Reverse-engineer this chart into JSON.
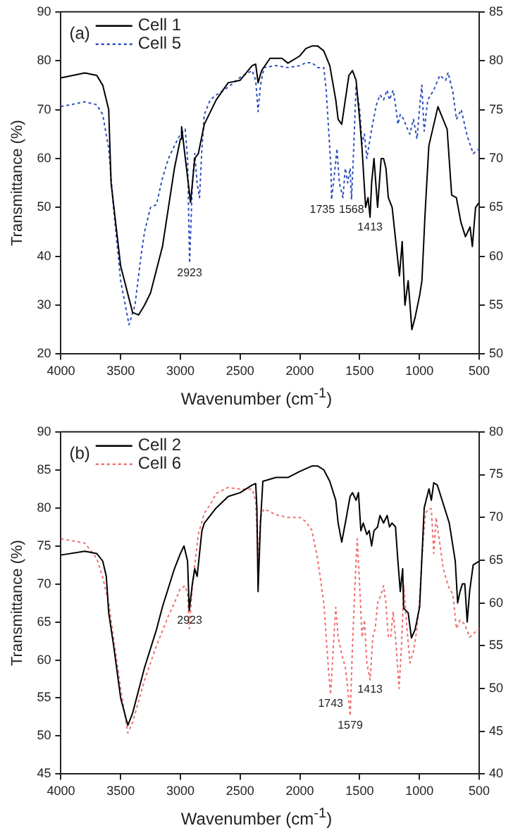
{
  "chart_data": [
    {
      "type": "line",
      "title": "(a)",
      "xlabel": "Wavenumber (cm$^{-1}$)",
      "ylabel": "Transmittance (%)",
      "xlim": [
        4000,
        500
      ],
      "xticks": [
        4000,
        3500,
        3000,
        2500,
        2000,
        1500,
        1000,
        500
      ],
      "ylim": [
        20,
        90
      ],
      "yticks": [
        20,
        30,
        40,
        50,
        60,
        70,
        80,
        90
      ],
      "y2lim": [
        50,
        85
      ],
      "y2ticks": [
        50,
        55,
        60,
        65,
        70,
        75,
        80,
        85
      ],
      "grid": false,
      "legend": "top left",
      "marker": "none",
      "annotations": [
        {
          "text": "2923",
          "x": 2923,
          "y": 38.5
        },
        {
          "text": "1735",
          "x": 1735,
          "y": 51.5
        },
        {
          "text": "1568",
          "x": 1568,
          "y": 51.5
        },
        {
          "text": "1413",
          "x": 1413,
          "y": 48
        }
      ],
      "series": [
        {
          "name": "Cell 1",
          "color": "#000000",
          "line_style": "solid",
          "x": [
            4000,
            3800,
            3700,
            3650,
            3600,
            3580,
            3500,
            3400,
            3350,
            3300,
            3250,
            3150,
            3100,
            3050,
            3000,
            2990,
            2915,
            2880,
            2850,
            2800,
            2700,
            2600,
            2500,
            2400,
            2370,
            2350,
            2320,
            2250,
            2150,
            2100,
            2000,
            1950,
            1900,
            1850,
            1800,
            1750,
            1700,
            1680,
            1650,
            1620,
            1590,
            1560,
            1530,
            1500,
            1480,
            1450,
            1430,
            1413,
            1400,
            1380,
            1350,
            1320,
            1300,
            1280,
            1260,
            1228,
            1167,
            1144,
            1121,
            1094,
            1063,
            1036,
            998,
            979,
            952,
            921,
            845,
            768,
            730,
            691,
            653,
            615,
            576,
            557,
            530,
            500
          ],
          "values": [
            76.5,
            77.5,
            77,
            75,
            70,
            55,
            38,
            28.5,
            28,
            30,
            32.5,
            42,
            50,
            58,
            64,
            66.5,
            51,
            60,
            61,
            67,
            72,
            75.5,
            76,
            79,
            79.3,
            75.5,
            78,
            80.5,
            80.5,
            79.5,
            81,
            82.5,
            83,
            83,
            82,
            79,
            72,
            68,
            67,
            72,
            77,
            78,
            76,
            68,
            62,
            50,
            52,
            48,
            55,
            60,
            50,
            60,
            60,
            58,
            52,
            50,
            36,
            43,
            30,
            35,
            25,
            27.5,
            32,
            35,
            49,
            62.6,
            70.6,
            66,
            52.5,
            52,
            47,
            44,
            46,
            42,
            50,
            51
          ]
        },
        {
          "name": "Cell 5",
          "color": "#3050c0",
          "line_style": "dotted",
          "axis": "y2",
          "x": [
            4000,
            3800,
            3700,
            3650,
            3600,
            3560,
            3500,
            3430,
            3380,
            3330,
            3300,
            3250,
            3200,
            3150,
            3100,
            3050,
            3000,
            2960,
            2940,
            2923,
            2900,
            2880,
            2860,
            2840,
            2820,
            2800,
            2750,
            2700,
            2600,
            2500,
            2400,
            2370,
            2350,
            2330,
            2300,
            2200,
            2100,
            2000,
            1950,
            1900,
            1850,
            1800,
            1780,
            1760,
            1740,
            1735,
            1710,
            1690,
            1670,
            1640,
            1620,
            1600,
            1580,
            1568,
            1550,
            1530,
            1500,
            1480,
            1460,
            1440,
            1400,
            1360,
            1330,
            1300,
            1270,
            1250,
            1220,
            1200,
            1180,
            1160,
            1130,
            1110,
            1080,
            1050,
            1020,
            1000,
            980,
            960,
            930,
            880,
            830,
            780,
            760,
            720,
            690,
            650,
            600,
            550,
            500
          ],
          "values": [
            75.3,
            75.8,
            75.5,
            74.5,
            71,
            65,
            57.5,
            53,
            55,
            60,
            62.5,
            65,
            65.3,
            68,
            70,
            71.3,
            72.5,
            73,
            70,
            59.3,
            67.5,
            70.5,
            67.5,
            66,
            71,
            74.5,
            76,
            76.5,
            77.3,
            78.3,
            79,
            78,
            74.8,
            77.5,
            79.3,
            79.5,
            79.3,
            79.5,
            79.8,
            79.8,
            79.3,
            79.3,
            77,
            73,
            69,
            65.8,
            68.5,
            71,
            67.5,
            66,
            69,
            67.5,
            69,
            65.8,
            71,
            77.5,
            75,
            71.5,
            72.5,
            70,
            73,
            75.5,
            76.5,
            76,
            77,
            76,
            77,
            75.5,
            73.5,
            74.5,
            74,
            73.3,
            72.5,
            74,
            72,
            75,
            77.5,
            72.8,
            76,
            77,
            78.5,
            78,
            78.8,
            76.8,
            74,
            75,
            72.3,
            70.5,
            71
          ]
        }
      ]
    },
    {
      "type": "line",
      "title": "(b)",
      "xlabel": "Wavenumber (cm$^{-1}$)",
      "ylabel": "Transmittance (%)",
      "xlim": [
        4000,
        500
      ],
      "xticks": [
        4000,
        3500,
        3000,
        2500,
        2000,
        1500,
        1000,
        500
      ],
      "ylim": [
        45,
        90
      ],
      "yticks": [
        45,
        50,
        55,
        60,
        65,
        70,
        75,
        80,
        85,
        90
      ],
      "y2lim": [
        40,
        80
      ],
      "y2ticks": [
        40,
        45,
        50,
        55,
        60,
        65,
        70,
        75,
        80
      ],
      "grid": false,
      "legend": "top left",
      "marker": "none",
      "annotations": [
        {
          "text": "2923",
          "x": 2923,
          "y": 66.5
        },
        {
          "text": "1743",
          "x": 1743,
          "y": 55.5
        },
        {
          "text": "1579",
          "x": 1579,
          "y": 52.7
        },
        {
          "text": "1413",
          "x": 1413,
          "y": 57.4
        }
      ],
      "series": [
        {
          "name": "Cell 2",
          "color": "#000000",
          "line_style": "solid",
          "x": [
            4000,
            3800,
            3700,
            3650,
            3620,
            3600,
            3560,
            3500,
            3440,
            3400,
            3300,
            3200,
            3150,
            3100,
            3050,
            3000,
            2970,
            2940,
            2926,
            2900,
            2880,
            2860,
            2820,
            2800,
            2700,
            2600,
            2500,
            2400,
            2370,
            2360,
            2350,
            2330,
            2310,
            2200,
            2100,
            2000,
            1900,
            1850,
            1800,
            1750,
            1700,
            1680,
            1650,
            1620,
            1580,
            1560,
            1530,
            1510,
            1490,
            1470,
            1440,
            1420,
            1400,
            1380,
            1350,
            1330,
            1300,
            1270,
            1250,
            1230,
            1200,
            1180,
            1160,
            1140,
            1132,
            1094,
            1067,
            1036,
            998,
            960,
            920,
            900,
            880,
            850,
            800,
            750,
            700,
            680,
            660,
            640,
            620,
            600,
            580,
            550,
            500
          ],
          "values": [
            73.8,
            74.3,
            74,
            73,
            71,
            66.2,
            62,
            55,
            51.4,
            53,
            59,
            64,
            67,
            69.5,
            72,
            74,
            75,
            73,
            66.5,
            70,
            72,
            71,
            77,
            78,
            80,
            81.5,
            82,
            83,
            83.2,
            80,
            69,
            78,
            83.5,
            84,
            84,
            84.8,
            85.5,
            85.5,
            85,
            83.5,
            81,
            78,
            75.5,
            78,
            81.5,
            82,
            81,
            82,
            77,
            78,
            76.5,
            77,
            75,
            77,
            77.5,
            79,
            78,
            79,
            77.5,
            78,
            77.5,
            73,
            69,
            72,
            66.8,
            66.2,
            62.9,
            64,
            67,
            80,
            82.5,
            81,
            83.3,
            83,
            80.5,
            78,
            73,
            67.5,
            69,
            70,
            70,
            65,
            69,
            72.5,
            73
          ]
        },
        {
          "name": "Cell 6",
          "color": "#f07070",
          "line_style": "dotted",
          "axis": "y2",
          "x": [
            4000,
            3800,
            3700,
            3650,
            3600,
            3560,
            3500,
            3440,
            3400,
            3300,
            3200,
            3100,
            3050,
            3000,
            2960,
            2940,
            2925,
            2900,
            2850,
            2800,
            2750,
            2700,
            2600,
            2500,
            2400,
            2370,
            2350,
            2330,
            2300,
            2200,
            2100,
            2000,
            1950,
            1900,
            1850,
            1800,
            1760,
            1743,
            1720,
            1700,
            1680,
            1650,
            1620,
            1600,
            1579,
            1560,
            1540,
            1520,
            1500,
            1480,
            1460,
            1440,
            1413,
            1390,
            1370,
            1350,
            1320,
            1300,
            1280,
            1260,
            1240,
            1220,
            1200,
            1170,
            1150,
            1130,
            1110,
            1080,
            1050,
            1020,
            1000,
            980,
            950,
            920,
            900,
            880,
            860,
            830,
            800,
            760,
            720,
            690,
            660,
            620,
            580,
            540,
            500
          ],
          "values": [
            67.5,
            67,
            65.2,
            63,
            60,
            56,
            50,
            44.8,
            46,
            51,
            55,
            58.5,
            60,
            61.7,
            62,
            61,
            57,
            62,
            68,
            70.5,
            71.5,
            72.8,
            73.5,
            73.3,
            73.3,
            72,
            65,
            70,
            71,
            70.3,
            70,
            70,
            69.5,
            68.5,
            65,
            60,
            52,
            49.3,
            55,
            59.5,
            56,
            54,
            52.5,
            50,
            46.8,
            55,
            62,
            67.5,
            62,
            56,
            58,
            53,
            51,
            56,
            57,
            60,
            61,
            62,
            60,
            56,
            56,
            59,
            56,
            50,
            55,
            62,
            58,
            53,
            54.3,
            57,
            60,
            65,
            70.5,
            71,
            71,
            65.8,
            70,
            67,
            64,
            62,
            61,
            57,
            58,
            57.5,
            56,
            56.5,
            57
          ]
        }
      ]
    }
  ]
}
